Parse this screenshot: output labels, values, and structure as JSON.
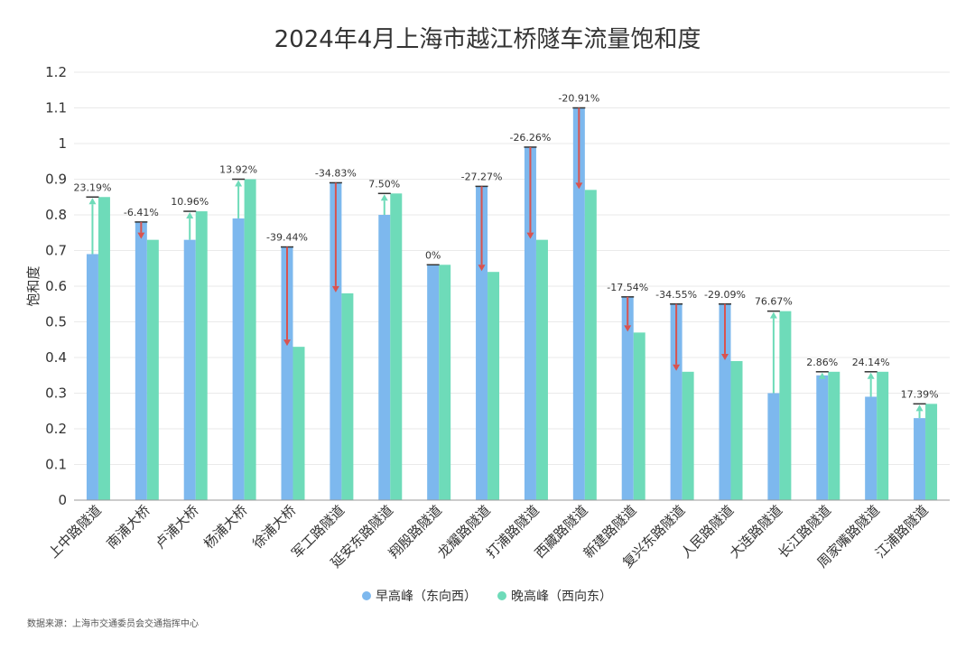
{
  "colors": {
    "morning": "#7DB8EE",
    "evening": "#6EDBB9",
    "increase": "#6EDBB9",
    "decrease": "#D9534F",
    "grid": "#EAEAEA"
  },
  "chart_data": {
    "type": "bar",
    "title": "2024年4月上海市越江桥隧车流量饱和度",
    "xlabel": "",
    "ylabel": "饱和度",
    "ylim": [
      0,
      1.2
    ],
    "yticks": [
      "0",
      "0.1",
      "0.2",
      "0.3",
      "0.4",
      "0.5",
      "0.6",
      "0.7",
      "0.8",
      "0.9",
      "1",
      "1.1",
      "1.2"
    ],
    "categories": [
      "上中路隧道",
      "南浦大桥",
      "卢浦大桥",
      "杨浦大桥",
      "徐浦大桥",
      "军工路隧道",
      "延安东路隧道",
      "翔殷路隧道",
      "龙耀路隧道",
      "打浦路隧道",
      "西藏路隧道",
      "新建路隧道",
      "复兴东路隧道",
      "人民路隧道",
      "大连路隧道",
      "长江路隧道",
      "周家嘴路隧道",
      "江浦路隧道"
    ],
    "series": [
      {
        "name": "早高峰（东向西）",
        "values": [
          0.69,
          0.78,
          0.73,
          0.79,
          0.71,
          0.89,
          0.8,
          0.66,
          0.88,
          0.99,
          1.1,
          0.57,
          0.55,
          0.55,
          0.3,
          0.35,
          0.29,
          0.23
        ]
      },
      {
        "name": "晚高峰（西向东）",
        "values": [
          0.85,
          0.73,
          0.81,
          0.9,
          0.43,
          0.58,
          0.86,
          0.66,
          0.64,
          0.73,
          0.87,
          0.47,
          0.36,
          0.39,
          0.53,
          0.36,
          0.36,
          0.27
        ]
      }
    ],
    "change_labels": [
      "23.19%",
      "-6.41%",
      "10.96%",
      "13.92%",
      "-39.44%",
      "-34.83%",
      "7.50%",
      "0%",
      "-27.27%",
      "-26.26%",
      "-20.91%",
      "-17.54%",
      "-34.55%",
      "-29.09%",
      "76.67%",
      "2.86%",
      "24.14%",
      "17.39%"
    ],
    "legend": {
      "position": "bottom-center",
      "entries": [
        "早高峰（东向西）",
        "晚高峰（西向东）"
      ]
    }
  },
  "source": "数据来源：上海市交通委员会交通指挥中心"
}
